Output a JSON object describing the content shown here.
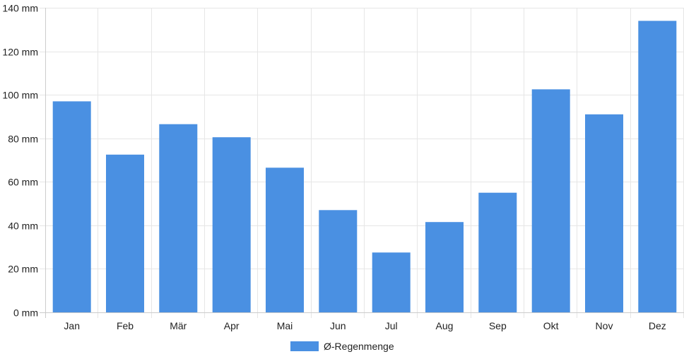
{
  "chart_data": {
    "type": "bar",
    "categories": [
      "Jan",
      "Feb",
      "Mär",
      "Apr",
      "Mai",
      "Jun",
      "Jul",
      "Aug",
      "Sep",
      "Okt",
      "Nov",
      "Dez"
    ],
    "series": [
      {
        "name": "Ø-Regenmenge",
        "color": "#4a90e2",
        "values": [
          97,
          72.5,
          86.5,
          80.5,
          66.5,
          47,
          27.5,
          41.5,
          55,
          102.5,
          91,
          134
        ]
      }
    ],
    "y_unit": "mm",
    "ylim": [
      0,
      140
    ],
    "y_ticks": [
      0,
      20,
      40,
      60,
      80,
      100,
      120,
      140
    ],
    "y_tick_labels": [
      "0 mm",
      "20 mm",
      "40 mm",
      "60 mm",
      "80 mm",
      "100 mm",
      "120 mm",
      "140 mm"
    ],
    "grid": true,
    "legend": "bottom-center"
  }
}
